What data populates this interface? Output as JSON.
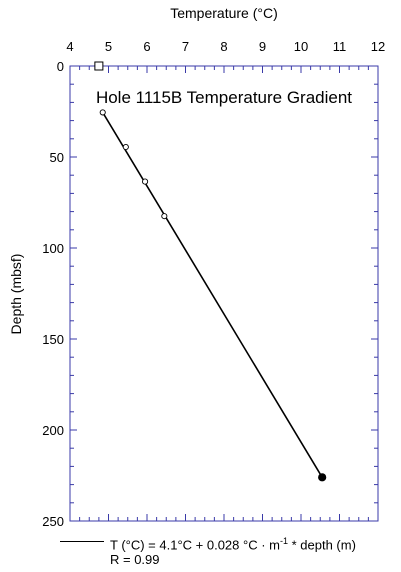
{
  "chart_data": {
    "type": "scatter",
    "title": "Hole 1115B Temperature Gradient",
    "xlabel": "Temperature (°C)",
    "ylabel": "Depth (mbsf)",
    "xlim": [
      4,
      12
    ],
    "ylim": [
      0,
      250
    ],
    "y_inverted": true,
    "x_axis_position": "top",
    "x_ticks": [
      "4",
      "5",
      "6",
      "7",
      "8",
      "9",
      "10",
      "11",
      "12"
    ],
    "y_ticks": [
      "0",
      "50",
      "100",
      "150",
      "200",
      "250"
    ],
    "grid": false,
    "series": [
      {
        "marker": "open-circle",
        "points": [
          {
            "x": 4.85,
            "y": 25.5
          },
          {
            "x": 5.45,
            "y": 44.5
          },
          {
            "x": 5.95,
            "y": 63.5
          },
          {
            "x": 6.45,
            "y": 82.5
          }
        ]
      },
      {
        "marker": "filled-circle",
        "points": [
          {
            "x": 10.55,
            "y": 226
          }
        ]
      },
      {
        "marker": "open-square",
        "points": [
          {
            "x": 4.75,
            "y": 0
          }
        ]
      }
    ],
    "fit_line": {
      "x_start": 4.85,
      "y_start": 25.5,
      "x_end": 10.55,
      "y_end": 226
    },
    "legend": {
      "position": "bottom",
      "line1": "T (°C) = 4.1°C + 0.028 °C · m",
      "superscript": "-1",
      "line1_end": " * depth (m)",
      "line2": "R = 0.99"
    }
  }
}
